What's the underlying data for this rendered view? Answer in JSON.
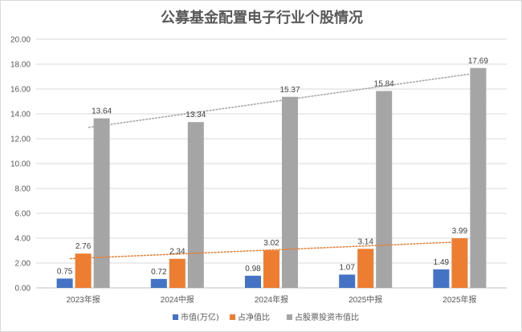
{
  "chart_data": {
    "type": "bar",
    "title": "公募基金配置电子行业个股情况",
    "categories": [
      "2023年报",
      "2024中报",
      "2024年报",
      "2025中报",
      "2025年报"
    ],
    "ylim": [
      0,
      20
    ],
    "yticks": [
      "0.00",
      "2.00",
      "4.00",
      "6.00",
      "8.00",
      "10.00",
      "12.00",
      "14.00",
      "16.00",
      "18.00",
      "20.00"
    ],
    "grid": true,
    "legend_position": "bottom",
    "series": [
      {
        "name": "市值(万亿)",
        "values": [
          0.75,
          0.72,
          0.98,
          1.07,
          1.49
        ],
        "labels": [
          "0.75",
          "0.72",
          "0.98",
          "1.07",
          "1.49"
        ],
        "color": "#4472c4"
      },
      {
        "name": "占净值比",
        "values": [
          2.76,
          2.34,
          3.02,
          3.14,
          3.99
        ],
        "labels": [
          "2.76",
          "2.34",
          "3.02",
          "3.14",
          "3.99"
        ],
        "color": "#ed7d31"
      },
      {
        "name": "占股票投资市值比",
        "values": [
          13.64,
          13.34,
          15.37,
          15.84,
          17.69
        ],
        "labels": [
          "13.64",
          "13.34",
          "15.37",
          "15.84",
          "17.69"
        ],
        "color": "#a5a5a5"
      }
    ],
    "trendlines": [
      {
        "series": "占净值比",
        "style": "dotted",
        "color": "#ed7d31"
      },
      {
        "series": "占股票投资市值比",
        "style": "dotted",
        "color": "#a5a5a5"
      }
    ]
  }
}
